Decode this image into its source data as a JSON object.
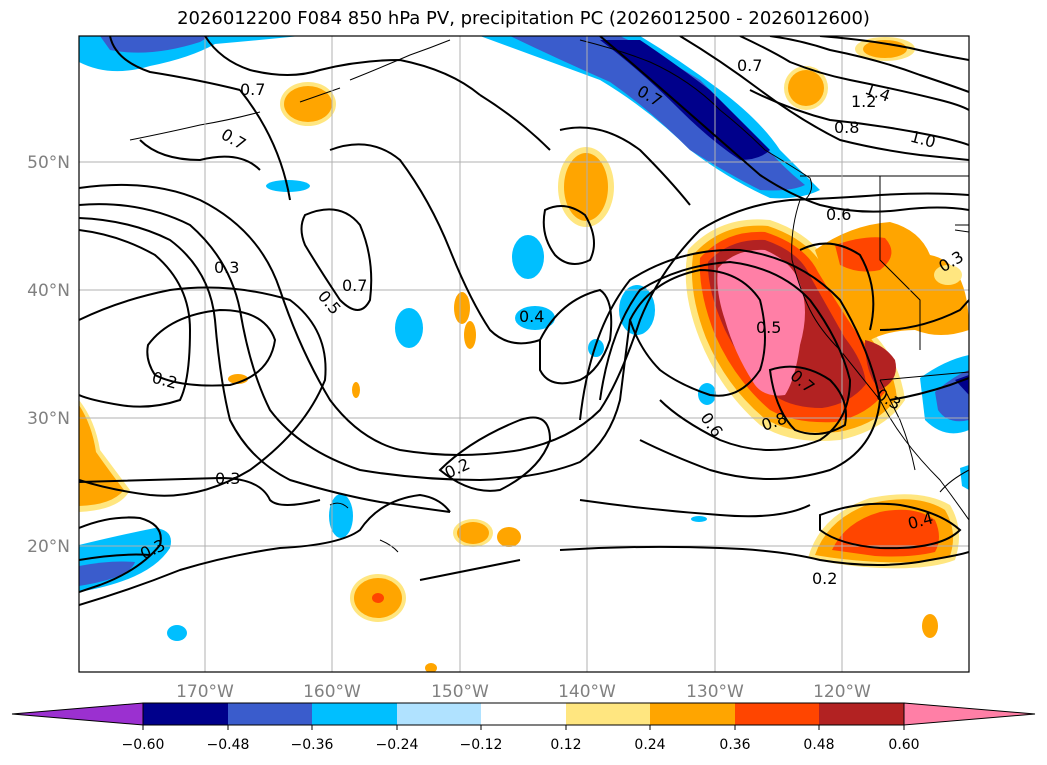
{
  "title": "2026012200 F084 850 hPa PV, precipitation PC (2026012500 - 2026012600)",
  "map": {
    "lon_ticks": [
      "170°W",
      "160°W",
      "150°W",
      "140°W",
      "130°W",
      "120°W"
    ],
    "lat_ticks": [
      "50°N",
      "40°N",
      "30°N",
      "20°N"
    ],
    "grid": true,
    "contour_labels": [
      "0.7",
      "0.7",
      "0.7",
      "0.7",
      "1.4",
      "1.2",
      "0.8",
      "1.0",
      "0.6",
      "0.3",
      "0.7",
      "0.5",
      "0.4",
      "0.3",
      "0.5",
      "0.2",
      "0.7",
      "0.8",
      "0.3",
      "0.6",
      "0.2",
      "0.3",
      "0.4",
      "0.3",
      "0.2"
    ]
  },
  "colorbar": {
    "ticks": [
      "−0.60",
      "−0.48",
      "−0.36",
      "−0.24",
      "−0.12",
      "0.12",
      "0.24",
      "0.36",
      "0.48",
      "0.60"
    ],
    "colors": [
      "#9b30d0",
      "#00008b",
      "#3a5ccc",
      "#00bfff",
      "#b0e2ff",
      "#ffffff",
      "#ffe680",
      "#ffa500",
      "#ff4500",
      "#b22222",
      "#ff7fa6"
    ]
  }
}
